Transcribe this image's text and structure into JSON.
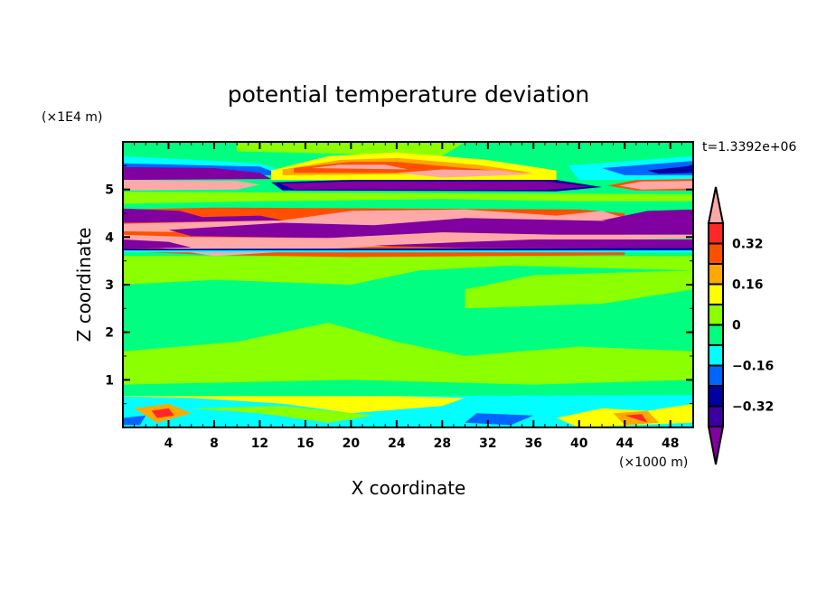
{
  "chart_data": {
    "type": "heatmap",
    "title": "potential temperature deviation",
    "xlabel": "X coordinate",
    "ylabel": "Z coordinate",
    "x_unit": "(×1000 m)",
    "y_unit": "(×1E4 m)",
    "time_label": "t=1.3392e+06",
    "xlim": [
      0,
      50
    ],
    "ylim": [
      0,
      6
    ],
    "x_ticks": [
      4,
      8,
      12,
      16,
      20,
      24,
      28,
      32,
      36,
      40,
      44,
      48
    ],
    "y_ticks": [
      1,
      2,
      3,
      4,
      5
    ],
    "colorbar": {
      "levels": [
        -0.4,
        -0.32,
        -0.24,
        -0.16,
        -0.08,
        0,
        0.08,
        0.16,
        0.24,
        0.32,
        0.4
      ],
      "labels": [
        "0.32",
        "0.16",
        "0",
        "−0.16",
        "−0.32"
      ],
      "label_values": [
        0.32,
        0.16,
        0,
        -0.16,
        -0.32
      ],
      "colors": [
        "#8000a0",
        "#3c00a0",
        "#0000a0",
        "#0064ff",
        "#00ffff",
        "#00ff80",
        "#8cff00",
        "#ffff00",
        "#ffa800",
        "#ff5000",
        "#ff2828",
        "#ffa8a8"
      ],
      "extend": "both"
    },
    "regions": [
      {
        "c": "#8cff00",
        "pts": [
          [
            0,
            3.0
          ],
          [
            8,
            3.1
          ],
          [
            20,
            3.0
          ],
          [
            26,
            3.3
          ],
          [
            34,
            3.4
          ],
          [
            50,
            3.3
          ],
          [
            50,
            3.6
          ],
          [
            0,
            3.6
          ]
        ]
      },
      {
        "c": "#8cff00",
        "pts": [
          [
            30,
            2.5
          ],
          [
            42,
            2.6
          ],
          [
            50,
            2.9
          ],
          [
            50,
            3.3
          ],
          [
            36,
            3.2
          ],
          [
            30,
            2.9
          ]
        ]
      },
      {
        "c": "#8cff00",
        "pts": [
          [
            0,
            1.6
          ],
          [
            10,
            1.8
          ],
          [
            18,
            2.2
          ],
          [
            24,
            1.8
          ],
          [
            30,
            1.5
          ],
          [
            40,
            1.7
          ],
          [
            50,
            1.6
          ],
          [
            50,
            1.0
          ],
          [
            36,
            0.9
          ],
          [
            20,
            1.0
          ],
          [
            0,
            0.9
          ]
        ]
      },
      {
        "c": "#8cff00",
        "pts": [
          [
            0,
            4.7
          ],
          [
            12,
            4.75
          ],
          [
            28,
            4.8
          ],
          [
            40,
            4.75
          ],
          [
            50,
            4.75
          ],
          [
            50,
            4.9
          ],
          [
            0,
            4.95
          ]
        ]
      },
      {
        "c": "#8cff00",
        "pts": [
          [
            10,
            5.8
          ],
          [
            28,
            5.7
          ],
          [
            30,
            6
          ],
          [
            10,
            6
          ]
        ]
      },
      {
        "c": "#00ffff",
        "pts": [
          [
            0,
            5.7
          ],
          [
            12,
            5.55
          ],
          [
            14,
            5.4
          ],
          [
            0,
            5.4
          ]
        ]
      },
      {
        "c": "#0064ff",
        "pts": [
          [
            0,
            5.55
          ],
          [
            12,
            5.48
          ],
          [
            14,
            5.3
          ],
          [
            0,
            5.3
          ]
        ]
      },
      {
        "c": "#00ffff",
        "pts": [
          [
            39,
            5.5
          ],
          [
            50,
            5.7
          ],
          [
            50,
            5.2
          ],
          [
            40,
            5.2
          ]
        ]
      },
      {
        "c": "#0064ff",
        "pts": [
          [
            42,
            5.45
          ],
          [
            50,
            5.6
          ],
          [
            50,
            5.3
          ],
          [
            44,
            5.3
          ]
        ]
      },
      {
        "c": "#0000a0",
        "pts": [
          [
            46,
            5.4
          ],
          [
            50,
            5.5
          ],
          [
            50,
            5.35
          ],
          [
            47,
            5.33
          ]
        ]
      },
      {
        "c": "#8000a0",
        "pts": [
          [
            0,
            5.47
          ],
          [
            8,
            5.45
          ],
          [
            12,
            5.35
          ],
          [
            13,
            5.22
          ],
          [
            0,
            5.2
          ]
        ]
      },
      {
        "c": "#ffff00",
        "pts": [
          [
            13,
            5.4
          ],
          [
            18,
            5.7
          ],
          [
            24,
            5.78
          ],
          [
            32,
            5.62
          ],
          [
            38,
            5.4
          ],
          [
            38,
            5.2
          ],
          [
            13,
            5.2
          ]
        ]
      },
      {
        "c": "#ffa800",
        "pts": [
          [
            14,
            5.42
          ],
          [
            19,
            5.62
          ],
          [
            24,
            5.66
          ],
          [
            31,
            5.52
          ],
          [
            36,
            5.35
          ],
          [
            14,
            5.3
          ]
        ]
      },
      {
        "c": "#ff5000",
        "pts": [
          [
            15,
            5.45
          ],
          [
            20,
            5.58
          ],
          [
            24,
            5.58
          ],
          [
            30,
            5.45
          ],
          [
            35,
            5.35
          ],
          [
            15,
            5.35
          ]
        ]
      },
      {
        "c": "#ffa8a8",
        "pts": [
          [
            16.5,
            5.45
          ],
          [
            19,
            5.52
          ],
          [
            23,
            5.52
          ],
          [
            25,
            5.42
          ]
        ]
      },
      {
        "c": "#ffa8a8",
        "pts": [
          [
            24,
            5.35
          ],
          [
            28,
            5.42
          ],
          [
            33,
            5.4
          ],
          [
            36,
            5.32
          ],
          [
            28,
            5.25
          ]
        ]
      },
      {
        "c": "#ffa8a8",
        "pts": [
          [
            0,
            5.2
          ],
          [
            10,
            5.18
          ],
          [
            12,
            5.1
          ],
          [
            10,
            5.0
          ],
          [
            0,
            4.98
          ]
        ]
      },
      {
        "c": "#0000a0",
        "pts": [
          [
            13,
            5.15
          ],
          [
            20,
            5.2
          ],
          [
            38,
            5.2
          ],
          [
            42,
            5.05
          ],
          [
            38,
            4.96
          ],
          [
            14,
            4.98
          ]
        ]
      },
      {
        "c": "#8000a0",
        "pts": [
          [
            13.8,
            5.12
          ],
          [
            20,
            5.17
          ],
          [
            37,
            5.17
          ],
          [
            41,
            5.06
          ],
          [
            37,
            4.99
          ],
          [
            15,
            5.0
          ]
        ]
      },
      {
        "c": "#ff5000",
        "pts": [
          [
            42.5,
            5.08
          ],
          [
            45,
            5.2
          ],
          [
            50,
            5.22
          ],
          [
            50,
            4.98
          ],
          [
            45,
            4.98
          ]
        ]
      },
      {
        "c": "#ffa8a8",
        "pts": [
          [
            43.5,
            5.08
          ],
          [
            45.5,
            5.17
          ],
          [
            50,
            5.18
          ],
          [
            50,
            5.02
          ],
          [
            45.5,
            5.0
          ]
        ]
      },
      {
        "c": "#ff5000",
        "pts": [
          [
            0,
            4.58
          ],
          [
            8,
            4.62
          ],
          [
            24,
            4.6
          ],
          [
            40,
            4.58
          ],
          [
            44,
            4.5
          ],
          [
            44,
            3.62
          ],
          [
            20,
            3.58
          ],
          [
            8,
            3.62
          ],
          [
            0,
            3.7
          ]
        ]
      },
      {
        "c": "#8000a0",
        "pts": [
          [
            0,
            4.6
          ],
          [
            5,
            4.55
          ],
          [
            7,
            4.42
          ],
          [
            12,
            4.45
          ],
          [
            14,
            4.35
          ],
          [
            0,
            4.3
          ]
        ]
      },
      {
        "c": "#ffa8a8",
        "pts": [
          [
            0,
            4.28
          ],
          [
            14,
            4.35
          ],
          [
            20,
            4.55
          ],
          [
            30,
            4.58
          ],
          [
            38,
            4.45
          ],
          [
            42,
            4.55
          ],
          [
            44,
            4.4
          ],
          [
            50,
            4.42
          ],
          [
            50,
            4.3
          ],
          [
            40,
            4.2
          ],
          [
            30,
            4.25
          ],
          [
            20,
            4.0
          ],
          [
            8,
            4.1
          ],
          [
            0,
            4.12
          ]
        ]
      },
      {
        "c": "#8000a0",
        "pts": [
          [
            42,
            4.35
          ],
          [
            46,
            4.55
          ],
          [
            50,
            4.58
          ],
          [
            50,
            4.3
          ],
          [
            44,
            4.3
          ]
        ]
      },
      {
        "c": "#8000a0",
        "pts": [
          [
            4,
            4.15
          ],
          [
            14,
            4.3
          ],
          [
            22,
            4.25
          ],
          [
            30,
            4.4
          ],
          [
            40,
            4.35
          ],
          [
            50,
            4.3
          ],
          [
            50,
            4.05
          ],
          [
            38,
            4.05
          ],
          [
            28,
            4.1
          ],
          [
            18,
            3.98
          ],
          [
            6,
            4.02
          ]
        ]
      },
      {
        "c": "#ffa8a8",
        "pts": [
          [
            0,
            4.05
          ],
          [
            6,
            4.0
          ],
          [
            18,
            3.98
          ],
          [
            28,
            4.1
          ],
          [
            38,
            4.05
          ],
          [
            50,
            4.05
          ],
          [
            50,
            3.97
          ],
          [
            30,
            3.9
          ],
          [
            18,
            3.75
          ],
          [
            8,
            3.6
          ],
          [
            4,
            3.75
          ],
          [
            0,
            3.85
          ]
        ]
      },
      {
        "c": "#8000a0",
        "pts": [
          [
            0,
            3.95
          ],
          [
            4,
            3.9
          ],
          [
            6,
            3.78
          ],
          [
            0,
            3.75
          ]
        ]
      },
      {
        "c": "#8000a0",
        "pts": [
          [
            22,
            3.82
          ],
          [
            36,
            3.95
          ],
          [
            50,
            3.95
          ],
          [
            50,
            3.77
          ],
          [
            30,
            3.77
          ]
        ]
      },
      {
        "c": "#0000a0",
        "pts": [
          [
            0,
            3.75
          ],
          [
            50,
            3.77
          ],
          [
            50,
            3.72
          ],
          [
            0,
            3.72
          ]
        ]
      },
      {
        "c": "#00ffff",
        "pts": [
          [
            0,
            3.72
          ],
          [
            50,
            3.72
          ],
          [
            50,
            3.68
          ],
          [
            0,
            3.68
          ]
        ]
      },
      {
        "c": "#00ffff",
        "pts": [
          [
            0,
            0.65
          ],
          [
            50,
            0.68
          ],
          [
            50,
            0
          ],
          [
            0,
            0
          ]
        ]
      },
      {
        "c": "#ffff00",
        "pts": [
          [
            0,
            0.65
          ],
          [
            6,
            0.62
          ],
          [
            14,
            0.5
          ],
          [
            20,
            0.3
          ],
          [
            28,
            0.45
          ],
          [
            30,
            0.62
          ],
          [
            24,
            0.66
          ],
          [
            0,
            0.66
          ]
        ]
      },
      {
        "c": "#8cff00",
        "pts": [
          [
            6,
            0.4
          ],
          [
            12,
            0.3
          ],
          [
            18,
            0.1
          ],
          [
            22,
            0.25
          ],
          [
            14,
            0.45
          ]
        ]
      },
      {
        "c": "#ffff00",
        "pts": [
          [
            38,
            0.2
          ],
          [
            42,
            0.4
          ],
          [
            46,
            0.35
          ],
          [
            50,
            0.5
          ],
          [
            50,
            0.1
          ],
          [
            40,
            0
          ]
        ]
      },
      {
        "c": "#ffa800",
        "pts": [
          [
            1,
            0.4
          ],
          [
            4,
            0.5
          ],
          [
            6,
            0.3
          ],
          [
            3,
            0.1
          ]
        ]
      },
      {
        "c": "#ff2828",
        "pts": [
          [
            2.5,
            0.35
          ],
          [
            4,
            0.4
          ],
          [
            4.5,
            0.25
          ],
          [
            3,
            0.2
          ]
        ]
      },
      {
        "c": "#ffa800",
        "pts": [
          [
            43,
            0.3
          ],
          [
            46,
            0.35
          ],
          [
            47,
            0.1
          ],
          [
            44,
            0.05
          ]
        ]
      },
      {
        "c": "#ff2828",
        "pts": [
          [
            44,
            0.25
          ],
          [
            45.5,
            0.28
          ],
          [
            46,
            0.1
          ]
        ]
      },
      {
        "c": "#0064ff",
        "pts": [
          [
            0,
            0.2
          ],
          [
            2,
            0.25
          ],
          [
            1.5,
            0.05
          ],
          [
            0,
            0.05
          ]
        ]
      },
      {
        "c": "#0064ff",
        "pts": [
          [
            31,
            0.3
          ],
          [
            36,
            0.25
          ],
          [
            34,
            0.05
          ],
          [
            30,
            0.1
          ]
        ]
      }
    ]
  }
}
